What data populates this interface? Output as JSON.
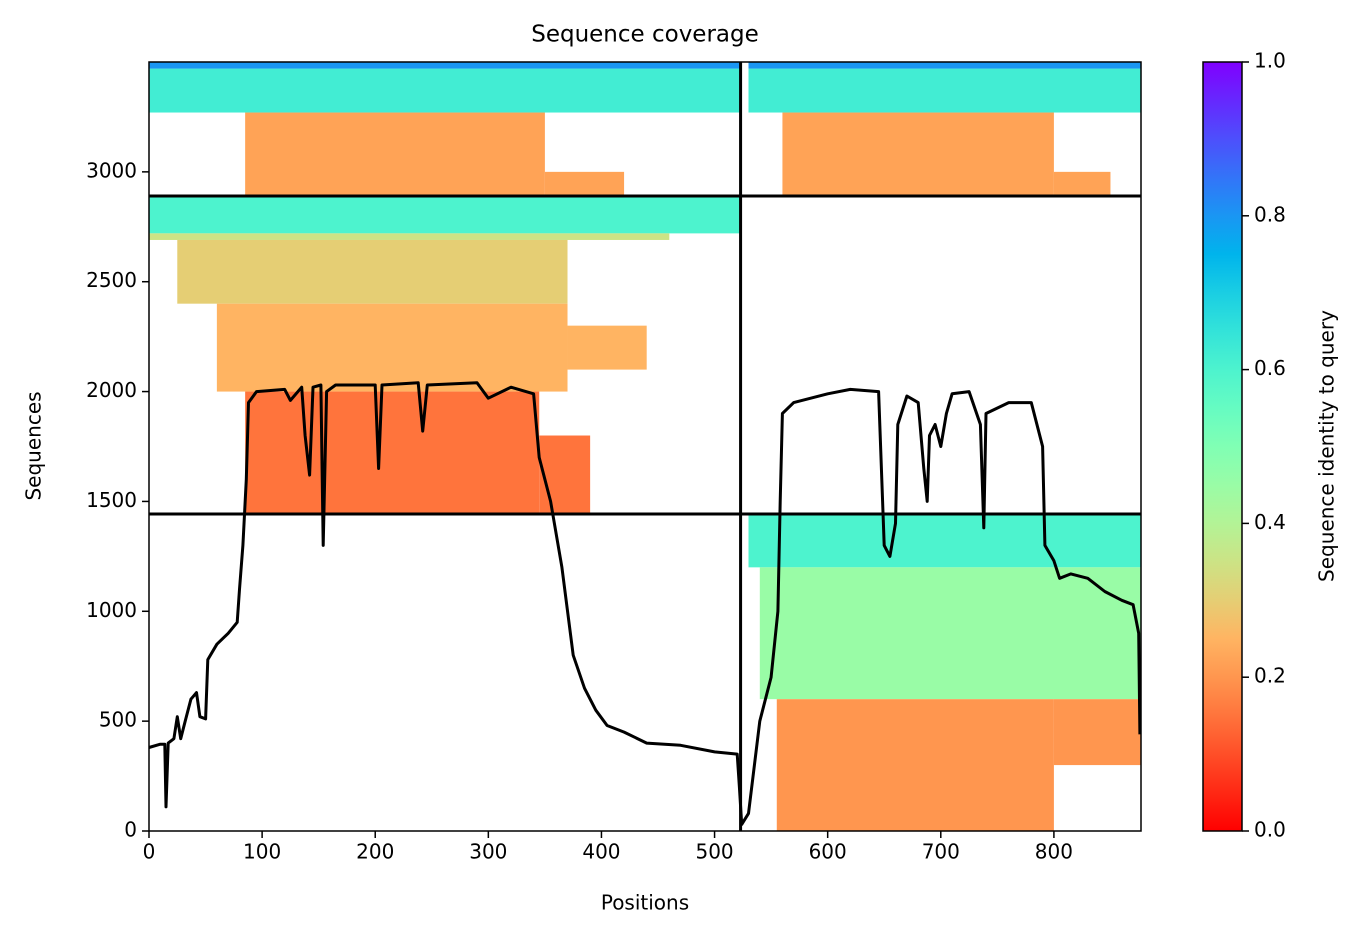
{
  "chart_data": {
    "type": "coverage",
    "title": "Sequence coverage",
    "xlabel": "Positions",
    "ylabel": "Sequences",
    "xlim": [
      0,
      877
    ],
    "ylim": [
      0,
      3500
    ],
    "xticks": [
      0,
      100,
      200,
      300,
      400,
      500,
      600,
      700,
      800
    ],
    "yticks": [
      0,
      500,
      1000,
      1500,
      2000,
      2500,
      3000
    ],
    "chain_breaks_x": [
      523
    ],
    "section_breaks_y": [
      1443,
      2890
    ],
    "colorbar": {
      "label": "Sequence identity to query",
      "lim": [
        0,
        1
      ],
      "colormap": "rainbow_r",
      "ticks": [
        {
          "value": 0,
          "label": "0.0"
        },
        {
          "value": 0.2,
          "label": "0.2"
        },
        {
          "value": 0.4,
          "label": "0.4"
        },
        {
          "value": 0.6,
          "label": "0.6"
        },
        {
          "value": 0.8,
          "label": "0.8"
        },
        {
          "value": 1,
          "label": "1.0"
        }
      ]
    },
    "blocks": [
      {
        "x": [
          0,
          523
        ],
        "y": [
          3270,
          3470
        ],
        "identity": 0.62
      },
      {
        "x": [
          0,
          523
        ],
        "y": [
          3470,
          3500
        ],
        "identity": 0.8
      },
      {
        "x": [
          530,
          877
        ],
        "y": [
          3270,
          3470
        ],
        "identity": 0.62
      },
      {
        "x": [
          530,
          877
        ],
        "y": [
          3470,
          3500
        ],
        "identity": 0.8
      },
      {
        "x": [
          85,
          350
        ],
        "y": [
          2890,
          3270
        ],
        "identity": 0.22
      },
      {
        "x": [
          350,
          420
        ],
        "y": [
          2890,
          3000
        ],
        "identity": 0.22
      },
      {
        "x": [
          560,
          800
        ],
        "y": [
          2890,
          3270
        ],
        "identity": 0.22
      },
      {
        "x": [
          800,
          850
        ],
        "y": [
          2890,
          3000
        ],
        "identity": 0.22
      },
      {
        "x": [
          0,
          523
        ],
        "y": [
          2720,
          2890
        ],
        "identity": 0.6
      },
      {
        "x": [
          0,
          460
        ],
        "y": [
          2690,
          2720
        ],
        "identity": 0.35
      },
      {
        "x": [
          25,
          370
        ],
        "y": [
          2400,
          2690
        ],
        "identity": 0.3
      },
      {
        "x": [
          60,
          370
        ],
        "y": [
          2000,
          2400
        ],
        "identity": 0.25
      },
      {
        "x": [
          370,
          440
        ],
        "y": [
          2100,
          2300
        ],
        "identity": 0.25
      },
      {
        "x": [
          85,
          345
        ],
        "y": [
          1443,
          2000
        ],
        "identity": 0.15
      },
      {
        "x": [
          345,
          390
        ],
        "y": [
          1443,
          1800
        ],
        "identity": 0.15
      },
      {
        "x": [
          530,
          877
        ],
        "y": [
          1200,
          1443
        ],
        "identity": 0.6
      },
      {
        "x": [
          540,
          877
        ],
        "y": [
          600,
          1200
        ],
        "identity": 0.45
      },
      {
        "x": [
          555,
          800
        ],
        "y": [
          0,
          600
        ],
        "identity": 0.2
      },
      {
        "x": [
          800,
          877
        ],
        "y": [
          300,
          600
        ],
        "identity": 0.2
      }
    ],
    "coverage": {
      "x": [
        0,
        10,
        14,
        15,
        17,
        22,
        25,
        28,
        32,
        37,
        42,
        45,
        50,
        52,
        60,
        70,
        78,
        80,
        83,
        86,
        88,
        95,
        120,
        125,
        135,
        138,
        142,
        145,
        152,
        154,
        157,
        165,
        200,
        203,
        206,
        238,
        242,
        246,
        290,
        300,
        320,
        340,
        345,
        355,
        365,
        375,
        385,
        395,
        405,
        420,
        440,
        470,
        500,
        520,
        522,
        524,
        530,
        540,
        550,
        556,
        558,
        560,
        570,
        600,
        620,
        645,
        650,
        655,
        660,
        662,
        670,
        680,
        685,
        688,
        690,
        695,
        700,
        705,
        710,
        725,
        735,
        738,
        740,
        760,
        780,
        790,
        792,
        800,
        805,
        815,
        830,
        845,
        860,
        870,
        875,
        876
      ],
      "values": [
        380,
        395,
        395,
        110,
        400,
        420,
        520,
        420,
        500,
        600,
        630,
        520,
        510,
        780,
        850,
        900,
        950,
        1100,
        1300,
        1600,
        1950,
        2000,
        2010,
        1960,
        2020,
        1800,
        1620,
        2020,
        2030,
        1300,
        2000,
        2030,
        2030,
        1650,
        2030,
        2040,
        1820,
        2030,
        2040,
        1970,
        2020,
        1990,
        1700,
        1500,
        1200,
        800,
        650,
        550,
        480,
        450,
        400,
        390,
        360,
        350,
        200,
        30,
        80,
        500,
        700,
        1000,
        1500,
        1900,
        1950,
        1990,
        2010,
        2000,
        1300,
        1250,
        1400,
        1850,
        1980,
        1950,
        1650,
        1500,
        1800,
        1850,
        1750,
        1900,
        1990,
        2000,
        1850,
        1380,
        1900,
        1950,
        1950,
        1750,
        1300,
        1230,
        1150,
        1170,
        1150,
        1090,
        1050,
        1030,
        900,
        440
      ]
    }
  }
}
